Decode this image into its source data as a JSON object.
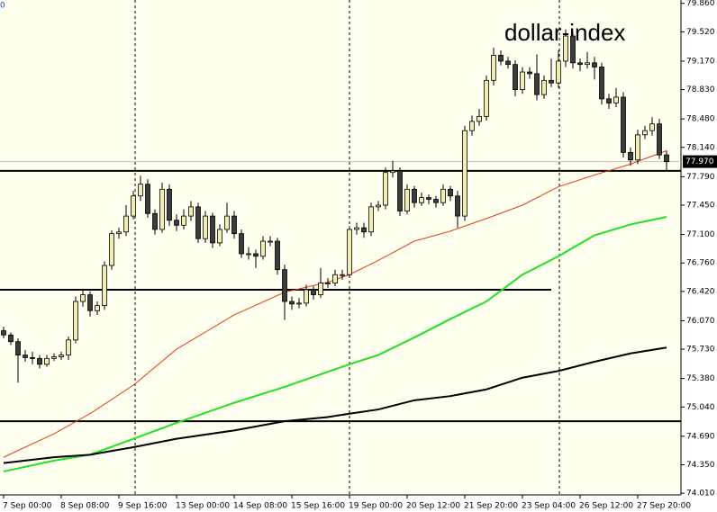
{
  "chart_data": {
    "type": "candlestick",
    "title": "dollar-index",
    "corner_label": "0",
    "categories": [
      "7 Sep 00:00",
      null,
      null,
      null,
      null,
      null,
      null,
      null,
      "8 Sep 08:00",
      null,
      null,
      null,
      null,
      null,
      null,
      null,
      "9 Sep 16:00",
      null,
      null,
      null,
      null,
      null,
      null,
      null,
      "13 Sep 00:00",
      null,
      null,
      null,
      null,
      null,
      null,
      null,
      "14 Sep 08:00",
      null,
      null,
      null,
      null,
      null,
      null,
      null,
      "15 Sep 16:00",
      null,
      null,
      null,
      null,
      null,
      null,
      null,
      "19 Sep 00:00",
      null,
      null,
      null,
      null,
      null,
      null,
      null,
      "20 Sep 12:00",
      null,
      null,
      null,
      null,
      null,
      null,
      null,
      "21 Sep 20:00",
      null,
      null,
      null,
      null,
      null,
      null,
      null,
      "23 Sep 04:00",
      null,
      null,
      null,
      null,
      null,
      null,
      null,
      "26 Sep 12:00",
      null,
      null,
      null,
      null,
      null,
      null,
      null,
      "27 Sep 20:00",
      null,
      null,
      null,
      null
    ],
    "candles": [
      {
        "open": 75.95,
        "high": 76.0,
        "low": 75.86,
        "close": 75.9
      },
      {
        "open": 75.9,
        "high": 75.93,
        "low": 75.78,
        "close": 75.82
      },
      {
        "open": 75.82,
        "high": 75.86,
        "low": 75.33,
        "close": 75.66
      },
      {
        "open": 75.66,
        "high": 75.72,
        "low": 75.58,
        "close": 75.63
      },
      {
        "open": 75.63,
        "high": 75.7,
        "low": 75.55,
        "close": 75.62
      },
      {
        "open": 75.62,
        "high": 75.66,
        "low": 75.5,
        "close": 75.55
      },
      {
        "open": 75.55,
        "high": 75.66,
        "low": 75.52,
        "close": 75.62
      },
      {
        "open": 75.62,
        "high": 75.68,
        "low": 75.59,
        "close": 75.64
      },
      {
        "open": 75.64,
        "high": 75.7,
        "low": 75.6,
        "close": 75.66
      },
      {
        "open": 75.66,
        "high": 75.88,
        "low": 75.6,
        "close": 75.84
      },
      {
        "open": 75.84,
        "high": 76.36,
        "low": 75.8,
        "close": 76.3
      },
      {
        "open": 76.3,
        "high": 76.45,
        "low": 76.24,
        "close": 76.38
      },
      {
        "open": 76.38,
        "high": 76.42,
        "low": 76.12,
        "close": 76.19
      },
      {
        "open": 76.19,
        "high": 76.3,
        "low": 76.14,
        "close": 76.25
      },
      {
        "open": 76.25,
        "high": 76.78,
        "low": 76.2,
        "close": 76.73
      },
      {
        "open": 76.73,
        "high": 77.15,
        "low": 76.68,
        "close": 77.11
      },
      {
        "open": 77.11,
        "high": 77.18,
        "low": 77.05,
        "close": 77.13
      },
      {
        "open": 77.13,
        "high": 77.45,
        "low": 77.08,
        "close": 77.32
      },
      {
        "open": 77.32,
        "high": 77.62,
        "low": 77.28,
        "close": 77.56
      },
      {
        "open": 77.56,
        "high": 77.8,
        "low": 77.5,
        "close": 77.7
      },
      {
        "open": 77.7,
        "high": 77.76,
        "low": 77.3,
        "close": 77.35
      },
      {
        "open": 77.35,
        "high": 77.4,
        "low": 77.1,
        "close": 77.16
      },
      {
        "open": 77.16,
        "high": 77.72,
        "low": 77.12,
        "close": 77.64
      },
      {
        "open": 77.64,
        "high": 77.7,
        "low": 77.2,
        "close": 77.27
      },
      {
        "open": 77.27,
        "high": 77.34,
        "low": 77.14,
        "close": 77.21
      },
      {
        "open": 77.21,
        "high": 77.4,
        "low": 77.16,
        "close": 77.32
      },
      {
        "open": 77.32,
        "high": 77.5,
        "low": 77.26,
        "close": 77.43
      },
      {
        "open": 77.43,
        "high": 77.48,
        "low": 77.0,
        "close": 77.05
      },
      {
        "open": 77.05,
        "high": 77.38,
        "low": 77.0,
        "close": 77.32
      },
      {
        "open": 77.32,
        "high": 77.36,
        "low": 76.94,
        "close": 77.0
      },
      {
        "open": 77.0,
        "high": 77.22,
        "low": 76.96,
        "close": 77.16
      },
      {
        "open": 77.16,
        "high": 77.48,
        "low": 77.12,
        "close": 77.32
      },
      {
        "open": 77.32,
        "high": 77.38,
        "low": 77.05,
        "close": 77.11
      },
      {
        "open": 77.11,
        "high": 77.16,
        "low": 76.82,
        "close": 76.87
      },
      {
        "open": 76.87,
        "high": 76.95,
        "low": 76.8,
        "close": 76.87
      },
      {
        "open": 76.87,
        "high": 76.92,
        "low": 76.7,
        "close": 76.84
      },
      {
        "open": 76.84,
        "high": 77.08,
        "low": 76.8,
        "close": 77.02
      },
      {
        "open": 77.02,
        "high": 77.08,
        "low": 76.96,
        "close": 77.02
      },
      {
        "open": 77.02,
        "high": 77.06,
        "low": 76.62,
        "close": 76.68
      },
      {
        "open": 76.68,
        "high": 76.74,
        "low": 76.08,
        "close": 76.3
      },
      {
        "open": 76.3,
        "high": 76.36,
        "low": 76.2,
        "close": 76.27
      },
      {
        "open": 76.27,
        "high": 76.34,
        "low": 76.22,
        "close": 76.28
      },
      {
        "open": 76.28,
        "high": 76.5,
        "low": 76.24,
        "close": 76.44
      },
      {
        "open": 76.44,
        "high": 76.48,
        "low": 76.32,
        "close": 76.38
      },
      {
        "open": 76.38,
        "high": 76.7,
        "low": 76.34,
        "close": 76.52
      },
      {
        "open": 76.52,
        "high": 76.58,
        "low": 76.46,
        "close": 76.52
      },
      {
        "open": 76.52,
        "high": 76.68,
        "low": 76.48,
        "close": 76.62
      },
      {
        "open": 76.62,
        "high": 76.68,
        "low": 76.56,
        "close": 76.62
      },
      {
        "open": 76.62,
        "high": 77.2,
        "low": 76.58,
        "close": 77.16
      },
      {
        "open": 77.16,
        "high": 77.24,
        "low": 77.1,
        "close": 77.18
      },
      {
        "open": 77.18,
        "high": 77.24,
        "low": 77.06,
        "close": 77.13
      },
      {
        "open": 77.13,
        "high": 77.48,
        "low": 77.08,
        "close": 77.43
      },
      {
        "open": 77.43,
        "high": 77.5,
        "low": 77.38,
        "close": 77.45
      },
      {
        "open": 77.45,
        "high": 77.9,
        "low": 77.4,
        "close": 77.84
      },
      {
        "open": 77.84,
        "high": 77.98,
        "low": 77.78,
        "close": 77.86
      },
      {
        "open": 77.86,
        "high": 77.9,
        "low": 77.32,
        "close": 77.38
      },
      {
        "open": 77.38,
        "high": 77.7,
        "low": 77.34,
        "close": 77.64
      },
      {
        "open": 77.64,
        "high": 77.68,
        "low": 77.42,
        "close": 77.48
      },
      {
        "open": 77.48,
        "high": 77.6,
        "low": 77.44,
        "close": 77.54
      },
      {
        "open": 77.54,
        "high": 77.58,
        "low": 77.46,
        "close": 77.52
      },
      {
        "open": 77.52,
        "high": 77.56,
        "low": 77.42,
        "close": 77.48
      },
      {
        "open": 77.48,
        "high": 77.7,
        "low": 77.44,
        "close": 77.64
      },
      {
        "open": 77.64,
        "high": 77.68,
        "low": 77.5,
        "close": 77.56
      },
      {
        "open": 77.56,
        "high": 77.62,
        "low": 77.18,
        "close": 77.32
      },
      {
        "open": 77.32,
        "high": 78.4,
        "low": 77.26,
        "close": 78.34
      },
      {
        "open": 78.34,
        "high": 78.52,
        "low": 78.28,
        "close": 78.45
      },
      {
        "open": 78.45,
        "high": 78.6,
        "low": 78.4,
        "close": 78.51
      },
      {
        "open": 78.51,
        "high": 79.0,
        "low": 78.46,
        "close": 78.94
      },
      {
        "open": 78.94,
        "high": 79.33,
        "low": 78.88,
        "close": 79.24
      },
      {
        "open": 79.24,
        "high": 79.3,
        "low": 79.12,
        "close": 79.17
      },
      {
        "open": 79.17,
        "high": 79.22,
        "low": 79.08,
        "close": 79.13
      },
      {
        "open": 79.13,
        "high": 79.18,
        "low": 78.75,
        "close": 78.83
      },
      {
        "open": 78.83,
        "high": 79.1,
        "low": 78.78,
        "close": 79.04
      },
      {
        "open": 79.04,
        "high": 79.1,
        "low": 78.96,
        "close": 79.02
      },
      {
        "open": 79.02,
        "high": 79.25,
        "low": 78.7,
        "close": 78.77
      },
      {
        "open": 78.77,
        "high": 79.0,
        "low": 78.72,
        "close": 78.94
      },
      {
        "open": 78.94,
        "high": 79.2,
        "low": 78.86,
        "close": 78.91
      },
      {
        "open": 78.91,
        "high": 79.3,
        "low": 78.85,
        "close": 79.17
      },
      {
        "open": 79.17,
        "high": 79.55,
        "low": 79.1,
        "close": 79.47
      },
      {
        "open": 79.47,
        "high": 79.52,
        "low": 79.08,
        "close": 79.15
      },
      {
        "open": 79.15,
        "high": 79.2,
        "low": 79.05,
        "close": 79.13
      },
      {
        "open": 79.13,
        "high": 79.28,
        "low": 79.08,
        "close": 79.15
      },
      {
        "open": 79.15,
        "high": 79.22,
        "low": 78.95,
        "close": 79.1
      },
      {
        "open": 79.1,
        "high": 79.15,
        "low": 78.65,
        "close": 78.72
      },
      {
        "open": 78.72,
        "high": 78.78,
        "low": 78.6,
        "close": 78.67
      },
      {
        "open": 78.67,
        "high": 78.85,
        "low": 78.62,
        "close": 78.74
      },
      {
        "open": 78.74,
        "high": 78.8,
        "low": 78.02,
        "close": 78.08
      },
      {
        "open": 78.08,
        "high": 78.14,
        "low": 77.92,
        "close": 77.99
      },
      {
        "open": 77.99,
        "high": 78.35,
        "low": 77.94,
        "close": 78.29
      },
      {
        "open": 78.29,
        "high": 78.4,
        "low": 78.24,
        "close": 78.34
      },
      {
        "open": 78.34,
        "high": 78.5,
        "low": 78.28,
        "close": 78.42
      },
      {
        "open": 78.42,
        "high": 78.48,
        "low": 78.0,
        "close": 78.05
      },
      {
        "open": 78.05,
        "high": 78.1,
        "low": 77.85,
        "close": 77.97
      }
    ],
    "bull_color": "#f2edb4",
    "bear_color": "#3c3c3c",
    "series": [
      {
        "type": "line",
        "color": "#e2401a",
        "x": [
          0,
          7,
          12,
          18,
          24,
          32,
          39,
          45,
          48,
          52,
          57,
          62,
          67,
          72,
          77,
          82,
          87,
          92
        ],
        "values": [
          74.44,
          74.72,
          74.96,
          75.3,
          75.73,
          76.14,
          76.41,
          76.53,
          76.62,
          76.79,
          77.02,
          77.14,
          77.29,
          77.45,
          77.67,
          77.81,
          77.94,
          78.1
        ]
      },
      {
        "type": "line",
        "color": "#22e022",
        "x": [
          0,
          7,
          12,
          18,
          24,
          32,
          39,
          45,
          48,
          52,
          57,
          62,
          67,
          72,
          77,
          82,
          87,
          92
        ],
        "values": [
          74.27,
          74.4,
          74.47,
          74.66,
          74.85,
          75.09,
          75.28,
          75.46,
          75.55,
          75.66,
          75.87,
          76.09,
          76.3,
          76.62,
          76.84,
          77.09,
          77.22,
          77.31
        ]
      },
      {
        "type": "line",
        "color": "#000000",
        "x": [
          0,
          7,
          12,
          18,
          24,
          32,
          39,
          45,
          48,
          52,
          57,
          62,
          67,
          72,
          77,
          82,
          87,
          92
        ],
        "values": [
          74.37,
          74.44,
          74.47,
          74.56,
          74.66,
          74.76,
          74.87,
          74.92,
          74.96,
          75.01,
          75.12,
          75.17,
          75.25,
          75.39,
          75.47,
          75.58,
          75.68,
          75.75
        ]
      }
    ],
    "hlines": [
      77.86,
      76.44,
      74.87
    ],
    "last_price": {
      "value": 77.97,
      "label": "77.970"
    },
    "ylim": [
      73.99,
      79.9
    ],
    "yticks": [
      {
        "value": 79.86,
        "label": "79.860"
      },
      {
        "value": 79.52,
        "label": "79.520"
      },
      {
        "value": 79.17,
        "label": "79.170"
      },
      {
        "value": 78.83,
        "label": "78.830"
      },
      {
        "value": 78.48,
        "label": "78.480"
      },
      {
        "value": 78.14,
        "label": "78.140"
      },
      {
        "value": 77.79,
        "label": "77.790"
      },
      {
        "value": 77.45,
        "label": "77.450"
      },
      {
        "value": 77.1,
        "label": "77.100"
      },
      {
        "value": 76.76,
        "label": "76.760"
      },
      {
        "value": 76.42,
        "label": "76.420"
      },
      {
        "value": 76.07,
        "label": "76.070"
      },
      {
        "value": 75.73,
        "label": "75.730"
      },
      {
        "value": 75.38,
        "label": "75.380"
      },
      {
        "value": 75.04,
        "label": "75.040"
      },
      {
        "value": 74.69,
        "label": "74.690"
      },
      {
        "value": 74.35,
        "label": "74.350"
      },
      {
        "value": 74.01,
        "label": "74.010"
      }
    ]
  }
}
